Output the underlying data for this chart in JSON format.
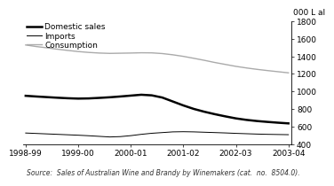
{
  "x_labels": [
    "1998-99",
    "1999-00",
    "2000-01",
    "2001-02",
    "2002-03",
    "2003-04"
  ],
  "x_positions": [
    0,
    1,
    2,
    3,
    4,
    5
  ],
  "domestic_sales_detail": [
    950,
    942,
    935,
    928,
    922,
    918,
    920,
    926,
    933,
    942,
    952,
    962,
    955,
    930,
    885,
    840,
    800,
    768,
    740,
    715,
    692,
    675,
    662,
    652,
    643,
    635
  ],
  "imports_detail": [
    525,
    520,
    515,
    510,
    505,
    500,
    494,
    487,
    480,
    484,
    495,
    510,
    522,
    530,
    538,
    540,
    538,
    534,
    530,
    526,
    521,
    517,
    513,
    510,
    508,
    506
  ],
  "consumption_detail": [
    1530,
    1512,
    1498,
    1482,
    1468,
    1455,
    1445,
    1438,
    1434,
    1436,
    1438,
    1441,
    1440,
    1432,
    1418,
    1400,
    1378,
    1355,
    1330,
    1308,
    1286,
    1268,
    1252,
    1238,
    1225,
    1212
  ],
  "ylim": [
    400,
    1800
  ],
  "yticks": [
    400,
    600,
    800,
    1000,
    1200,
    1400,
    1600,
    1800
  ],
  "ylabel": "000 L al",
  "source_text": "Source:  Sales of Australian Wine and Brandy by Winemakers (cat.  no.  8504.0).",
  "legend_labels": [
    "Domestic sales",
    "Imports",
    "Consumption"
  ],
  "domestic_color": "#000000",
  "imports_color": "#000000",
  "consumption_color": "#aaaaaa",
  "domestic_linewidth": 1.8,
  "imports_linewidth": 0.7,
  "consumption_linewidth": 1.0,
  "background_color": "#ffffff",
  "font_size_ticks": 6.5,
  "font_size_legend": 6.5,
  "font_size_source": 5.5,
  "font_size_ylabel": 6.5
}
